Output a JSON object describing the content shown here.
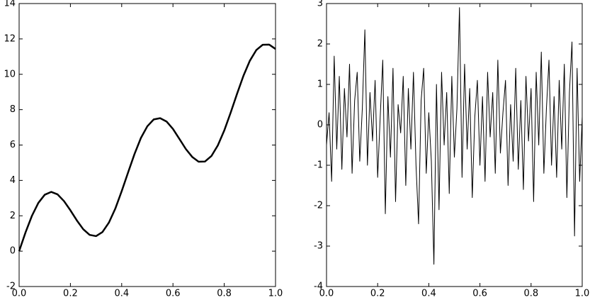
{
  "chart_data": [
    {
      "type": "line",
      "x": [
        0,
        0.025,
        0.05,
        0.075,
        0.1,
        0.125,
        0.15,
        0.175,
        0.2,
        0.225,
        0.25,
        0.275,
        0.3,
        0.325,
        0.35,
        0.375,
        0.4,
        0.425,
        0.45,
        0.475,
        0.5,
        0.525,
        0.55,
        0.575,
        0.6,
        0.625,
        0.65,
        0.675,
        0.7,
        0.725,
        0.75,
        0.775,
        0.8,
        0.825,
        0.85,
        0.875,
        0.9,
        0.925,
        0.95,
        0.975,
        1.0
      ],
      "series": [
        {
          "color": "#000000",
          "values": [
            0,
            1.06,
            2.0,
            2.73,
            3.19,
            3.35,
            3.21,
            2.83,
            2.31,
            1.74,
            1.24,
            0.92,
            0.85,
            1.08,
            1.61,
            2.4,
            3.39,
            4.45,
            5.49,
            6.4,
            7.06,
            7.45,
            7.52,
            7.33,
            6.91,
            6.35,
            5.78,
            5.33,
            5.06,
            5.07,
            5.38,
            5.98,
            6.82,
            7.83,
            8.9,
            9.92,
            10.77,
            11.37,
            11.67,
            11.68,
            11.43
          ]
        }
      ],
      "xlim": [
        0,
        1
      ],
      "xticks": [
        {
          "value": 0,
          "label": "0.0"
        },
        {
          "value": 0.2,
          "label": "0.2"
        },
        {
          "value": 0.4,
          "label": "0.4"
        },
        {
          "value": 0.6,
          "label": "0.6"
        },
        {
          "value": 0.8,
          "label": "0.8"
        },
        {
          "value": 1,
          "label": "1.0"
        }
      ],
      "ylim": [
        -2,
        14
      ],
      "yticks": [
        -2,
        0,
        2,
        4,
        6,
        8,
        10,
        12,
        14
      ],
      "line_width": 2.5
    },
    {
      "type": "line",
      "x": [
        0,
        0.01,
        0.02,
        0.03,
        0.04,
        0.05,
        0.06,
        0.07,
        0.08,
        0.09,
        0.1,
        0.11,
        0.12,
        0.13,
        0.14,
        0.15,
        0.16,
        0.17,
        0.18,
        0.19,
        0.2,
        0.21,
        0.22,
        0.23,
        0.24,
        0.25,
        0.26,
        0.27,
        0.28,
        0.29,
        0.3,
        0.31,
        0.32,
        0.33,
        0.34,
        0.35,
        0.36,
        0.37,
        0.38,
        0.39,
        0.4,
        0.41,
        0.42,
        0.43,
        0.44,
        0.45,
        0.46,
        0.47,
        0.48,
        0.49,
        0.5,
        0.51,
        0.52,
        0.53,
        0.54,
        0.55,
        0.56,
        0.57,
        0.58,
        0.59,
        0.6,
        0.61,
        0.62,
        0.63,
        0.64,
        0.65,
        0.66,
        0.67,
        0.68,
        0.69,
        0.7,
        0.71,
        0.72,
        0.73,
        0.74,
        0.75,
        0.76,
        0.77,
        0.78,
        0.79,
        0.8,
        0.81,
        0.82,
        0.83,
        0.84,
        0.85,
        0.86,
        0.87,
        0.88,
        0.89,
        0.9,
        0.91,
        0.92,
        0.93,
        0.94,
        0.95,
        0.96,
        0.97,
        0.98,
        0.99,
        1.0
      ],
      "series": [
        {
          "color": "#000000",
          "values": [
            -0.5,
            0.3,
            -1.4,
            1.7,
            -0.6,
            1.2,
            -1.1,
            0.9,
            -0.3,
            1.5,
            -1.2,
            0.6,
            1.3,
            -0.9,
            0.4,
            2.35,
            -1.0,
            0.8,
            -0.4,
            1.1,
            -1.3,
            0.2,
            1.6,
            -2.2,
            0.7,
            -0.8,
            1.4,
            -1.9,
            0.5,
            -0.2,
            1.2,
            -1.5,
            0.9,
            -0.6,
            1.3,
            -1.0,
            -2.45,
            0.6,
            1.4,
            -1.2,
            0.3,
            -0.9,
            -3.45,
            1.0,
            -2.1,
            1.3,
            -0.5,
            0.8,
            -1.7,
            1.2,
            -0.8,
            0.4,
            2.9,
            -1.3,
            1.5,
            -0.6,
            0.9,
            -1.8,
            0.2,
            1.1,
            -1.0,
            0.7,
            -1.4,
            1.3,
            -0.3,
            0.8,
            -1.2,
            1.6,
            -0.7,
            0.3,
            1.1,
            -1.5,
            0.5,
            -0.9,
            1.4,
            -1.1,
            0.6,
            -1.6,
            1.2,
            -0.4,
            0.9,
            -1.9,
            1.3,
            -0.5,
            1.8,
            -1.2,
            0.4,
            1.6,
            -1.0,
            0.7,
            -1.3,
            1.1,
            -0.6,
            1.5,
            -1.8,
            0.8,
            2.05,
            -2.75,
            1.4,
            -1.4,
            0.2
          ]
        }
      ],
      "xlim": [
        0,
        1
      ],
      "xticks": [
        {
          "value": 0,
          "label": "0.0"
        },
        {
          "value": 0.2,
          "label": "0.2"
        },
        {
          "value": 0.4,
          "label": "0.4"
        },
        {
          "value": 0.6,
          "label": "0.6"
        },
        {
          "value": 0.8,
          "label": "0.8"
        },
        {
          "value": 1,
          "label": "1.0"
        }
      ],
      "ylim": [
        -4,
        3
      ],
      "yticks": [
        -4,
        -3,
        -2,
        -1,
        0,
        1,
        2,
        3
      ],
      "line_width": 1
    }
  ]
}
